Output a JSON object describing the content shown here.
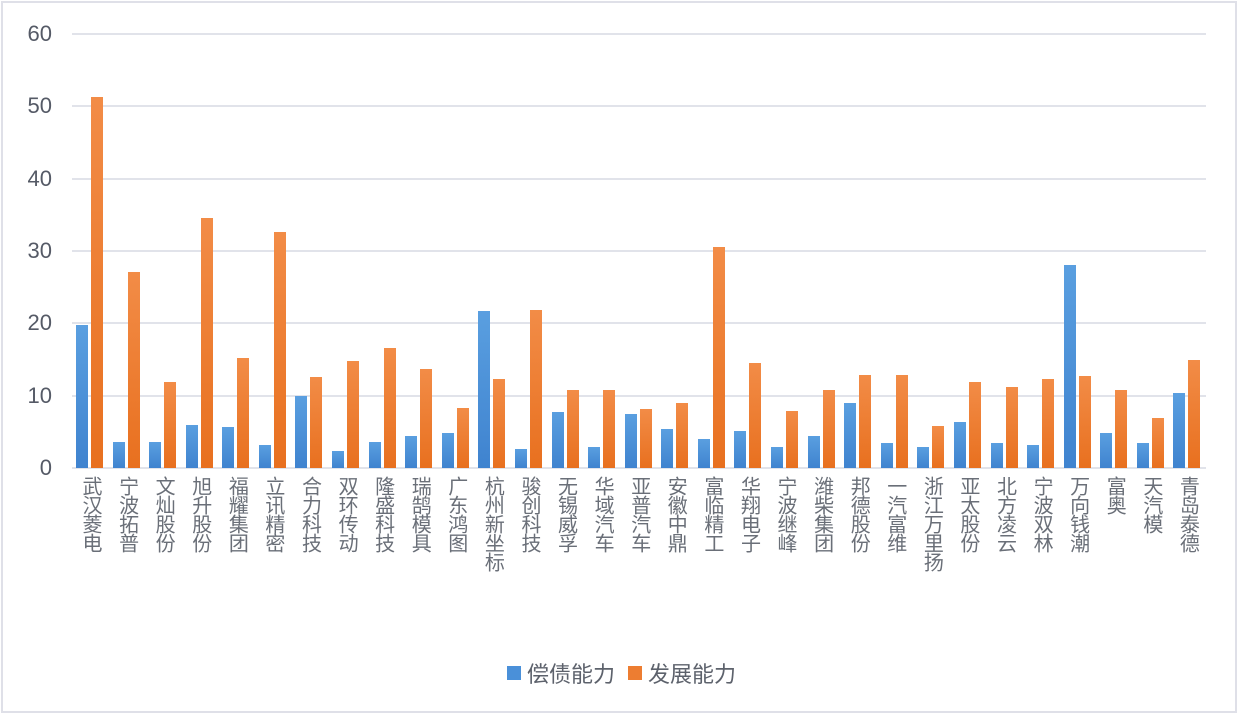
{
  "chart_data": {
    "type": "bar",
    "title": "",
    "xlabel": "",
    "ylabel": "",
    "ylim": [
      0,
      60
    ],
    "yticks": [
      0,
      10,
      20,
      30,
      40,
      50,
      60
    ],
    "grid": true,
    "legend_position": "bottom",
    "categories": [
      "武汉菱电",
      "宁波拓普",
      "文灿股份",
      "旭升股份",
      "福耀集团",
      "立讯精密",
      "合力科技",
      "双环传动",
      "隆盛科技",
      "瑞鹄模具",
      "广东鸿图",
      "杭州新坐标",
      "骏创科技",
      "无锡威孚",
      "华域汽车",
      "亚普汽车",
      "安徽中鼎",
      "富临精工",
      "华翔电子",
      "宁波继峰",
      "潍柴集团",
      "邦德股份",
      "一汽富维",
      "浙江万里扬",
      "亚太股份",
      "北方凌云",
      "宁波双林",
      "万向钱潮",
      "富奥",
      "天汽模",
      "青岛泰德"
    ],
    "series": [
      {
        "name": "偿债能力",
        "color": "#4a90d9",
        "values": [
          19.8,
          3.6,
          3.6,
          5.9,
          5.7,
          3.2,
          10.0,
          2.4,
          3.6,
          4.4,
          4.8,
          21.7,
          2.6,
          7.7,
          2.9,
          7.5,
          5.4,
          4.0,
          5.1,
          2.9,
          4.4,
          9.0,
          3.4,
          2.9,
          6.3,
          3.4,
          3.2,
          28.1,
          4.8,
          3.4,
          10.4
        ]
      },
      {
        "name": "发展能力",
        "color": "#ed7d31",
        "values": [
          51.3,
          27.1,
          11.9,
          34.6,
          15.2,
          32.6,
          12.6,
          14.8,
          16.6,
          13.7,
          8.3,
          12.3,
          21.9,
          10.8,
          10.8,
          8.2,
          9.0,
          30.6,
          14.5,
          7.9,
          10.8,
          12.9,
          12.9,
          5.8,
          11.9,
          11.2,
          12.3,
          12.7,
          10.8,
          6.9,
          14.9
        ]
      }
    ]
  },
  "legend": {
    "items": [
      {
        "label": "偿债能力",
        "color": "#4a90d9"
      },
      {
        "label": "发展能力",
        "color": "#ed7d31"
      }
    ]
  }
}
